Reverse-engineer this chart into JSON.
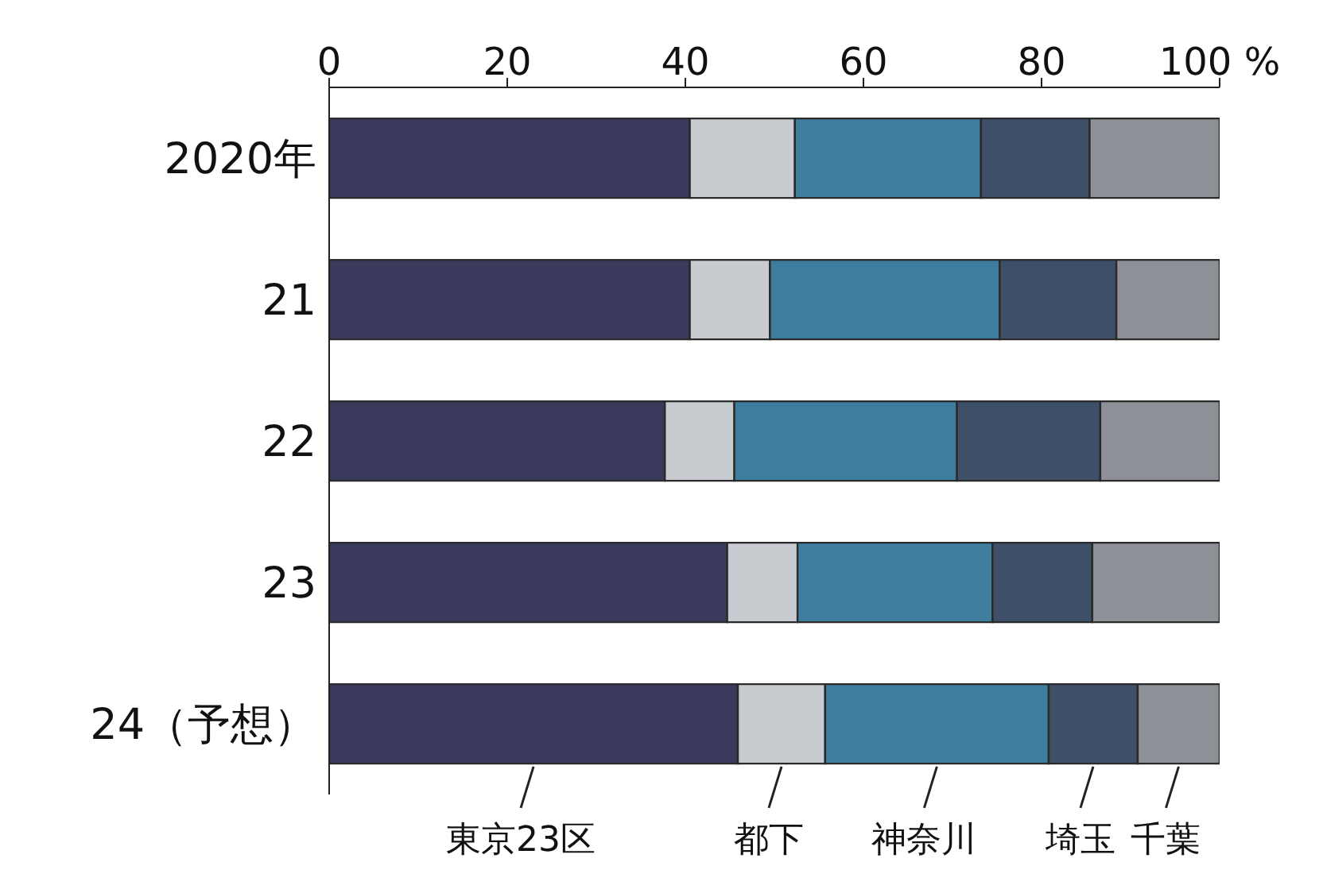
{
  "chart_data": {
    "type": "bar",
    "orientation": "horizontal",
    "stacked": true,
    "categories": [
      "2020年",
      "21",
      "22",
      "23",
      "24（予想）"
    ],
    "series": [
      {
        "name": "東京23区",
        "color": "#3a3a5c",
        "values": [
          40.5,
          40.5,
          37.7,
          44.7,
          45.9
        ]
      },
      {
        "name": "都下",
        "color": "#c8ccd0",
        "values": [
          11.8,
          9.0,
          7.8,
          7.9,
          9.8
        ]
      },
      {
        "name": "神奈川",
        "color": "#3f7d9e",
        "values": [
          20.9,
          25.8,
          25.0,
          21.9,
          25.1
        ]
      },
      {
        "name": "埼玉",
        "color": "#3d5068",
        "values": [
          12.2,
          13.1,
          16.1,
          11.2,
          10.0
        ]
      },
      {
        "name": "千葉",
        "color": "#8e9098",
        "values": [
          14.6,
          11.6,
          13.4,
          14.3,
          9.2
        ]
      }
    ],
    "xlim": [
      0,
      100
    ],
    "xticks": [
      0,
      20,
      40,
      60,
      80,
      {
        "value": 100,
        "label": "100 %"
      }
    ],
    "legend": "bottom",
    "grid": false
  }
}
